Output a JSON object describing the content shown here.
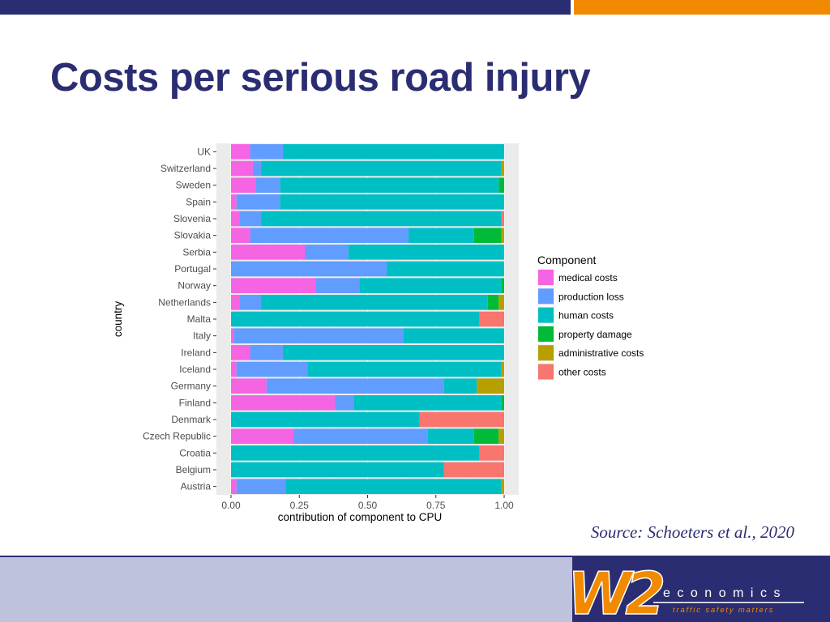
{
  "slide": {
    "title": "Costs per serious road injury",
    "source": "Source: Schoeters et al., 2020"
  },
  "logo": {
    "mark": "W2",
    "word": "economics",
    "tagline": "traffic safety matters"
  },
  "colors": {
    "navy": "#2b2d72",
    "orange": "#f28a00",
    "footer_light": "#bfc2dc"
  },
  "chart_data": {
    "type": "bar",
    "orientation": "horizontal",
    "stacked": "normalized",
    "xlabel": "contribution of component to CPU",
    "ylabel": "country",
    "xlim": [
      0,
      1
    ],
    "xticks": [
      "0.00",
      "0.25",
      "0.50",
      "0.75",
      "1.00"
    ],
    "grid": true,
    "legend": {
      "title": "Component",
      "placement": "right"
    },
    "categories": [
      "UK",
      "Switzerland",
      "Sweden",
      "Spain",
      "Slovenia",
      "Slovakia",
      "Serbia",
      "Portugal",
      "Norway",
      "Netherlands",
      "Malta",
      "Italy",
      "Ireland",
      "Iceland",
      "Germany",
      "Finland",
      "Denmark",
      "Czech Republic",
      "Croatia",
      "Belgium",
      "Austria"
    ],
    "series": [
      {
        "name": "medical costs",
        "color": "#f564e3",
        "values": [
          0.07,
          0.08,
          0.09,
          0.02,
          0.03,
          0.07,
          0.27,
          0.0,
          0.31,
          0.03,
          0.0,
          0.01,
          0.07,
          0.02,
          0.13,
          0.38,
          0.0,
          0.23,
          0.0,
          0.0,
          0.02
        ]
      },
      {
        "name": "production loss",
        "color": "#619cff",
        "values": [
          0.12,
          0.03,
          0.09,
          0.16,
          0.08,
          0.58,
          0.16,
          0.57,
          0.16,
          0.08,
          0.0,
          0.62,
          0.12,
          0.26,
          0.65,
          0.07,
          0.0,
          0.49,
          0.0,
          0.0,
          0.18
        ]
      },
      {
        "name": "human costs",
        "color": "#00bfc4",
        "values": [
          0.81,
          0.88,
          0.8,
          0.82,
          0.88,
          0.24,
          0.57,
          0.43,
          0.52,
          0.83,
          0.91,
          0.37,
          0.81,
          0.71,
          0.12,
          0.54,
          0.69,
          0.17,
          0.91,
          0.78,
          0.79
        ]
      },
      {
        "name": "property damage",
        "color": "#00ba38",
        "values": [
          0.0,
          0.0,
          0.02,
          0.0,
          0.0,
          0.1,
          0.0,
          0.0,
          0.01,
          0.04,
          0.0,
          0.0,
          0.0,
          0.0,
          0.0,
          0.01,
          0.0,
          0.09,
          0.0,
          0.0,
          0.0
        ]
      },
      {
        "name": "administrative costs",
        "color": "#b79f00",
        "values": [
          0.0,
          0.01,
          0.0,
          0.0,
          0.0,
          0.01,
          0.0,
          0.0,
          0.0,
          0.02,
          0.0,
          0.0,
          0.0,
          0.01,
          0.1,
          0.0,
          0.0,
          0.02,
          0.0,
          0.0,
          0.01
        ]
      },
      {
        "name": "other costs",
        "color": "#f8766d",
        "values": [
          0.0,
          0.0,
          0.0,
          0.0,
          0.01,
          0.0,
          0.0,
          0.0,
          0.0,
          0.0,
          0.09,
          0.0,
          0.0,
          0.0,
          0.0,
          0.0,
          0.31,
          0.0,
          0.09,
          0.22,
          0.0
        ]
      }
    ]
  }
}
